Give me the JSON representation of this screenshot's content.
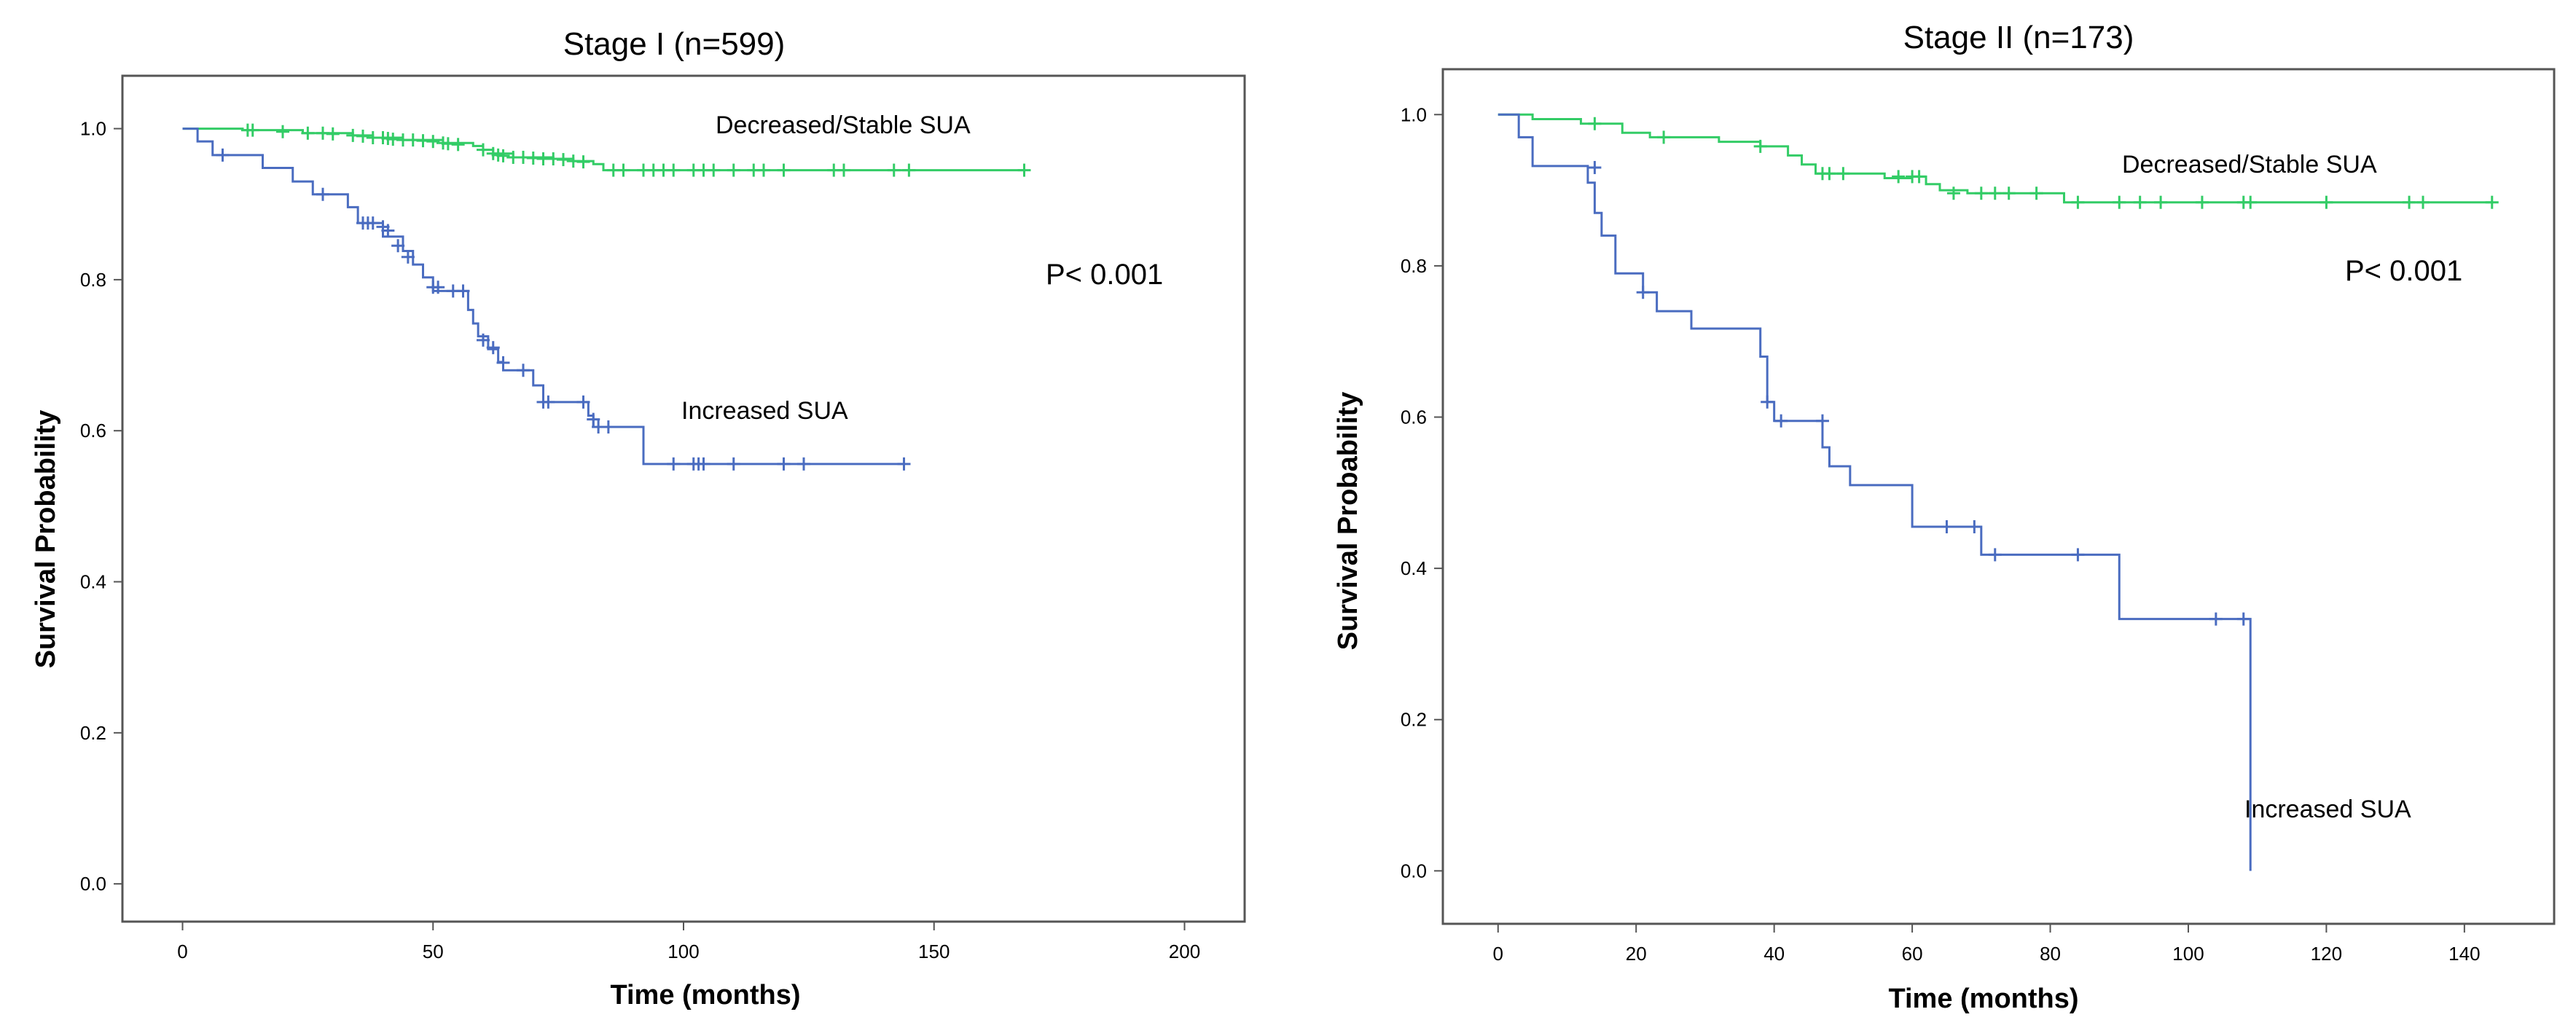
{
  "chart_data": [
    {
      "type": "line",
      "title": "Stage I (n=599)",
      "xlabel": "Time (months)",
      "ylabel": "Survival Probability",
      "xlim": [
        -12,
        212
      ],
      "ylim": [
        -0.05,
        1.07
      ],
      "x_ticks": [
        0,
        50,
        100,
        150,
        200
      ],
      "x_tick_labels": [
        "0",
        "50",
        "100",
        "150",
        "200"
      ],
      "y_ticks": [
        0.0,
        0.2,
        0.4,
        0.6,
        0.8,
        1.0
      ],
      "y_tick_labels": [
        "0.0",
        "0.2",
        "0.4",
        "0.6",
        "0.8",
        "1.0"
      ],
      "grid": false,
      "annotation": "P< 0.001",
      "series": [
        {
          "name": "Decreased/Stable SUA",
          "color": "#33cc66",
          "steps": [
            [
              0,
              1.0
            ],
            [
              12,
              0.998
            ],
            [
              24,
              0.994
            ],
            [
              34,
              0.991
            ],
            [
              38,
              0.988
            ],
            [
              44,
              0.985
            ],
            [
              52,
              0.981
            ],
            [
              58,
              0.977
            ],
            [
              60,
              0.972
            ],
            [
              62,
              0.967
            ],
            [
              66,
              0.962
            ],
            [
              74,
              0.96
            ],
            [
              78,
              0.957
            ],
            [
              82,
              0.953
            ],
            [
              84,
              0.945
            ],
            [
              168,
              0.945
            ]
          ],
          "censors": [
            [
              13,
              0.998
            ],
            [
              14,
              0.998
            ],
            [
              20,
              0.996
            ],
            [
              25,
              0.994
            ],
            [
              28,
              0.994
            ],
            [
              30,
              0.993
            ],
            [
              34,
              0.991
            ],
            [
              36,
              0.99
            ],
            [
              38,
              0.988
            ],
            [
              40,
              0.988
            ],
            [
              41,
              0.987
            ],
            [
              42,
              0.986
            ],
            [
              44,
              0.985
            ],
            [
              46,
              0.985
            ],
            [
              48,
              0.984
            ],
            [
              50,
              0.983
            ],
            [
              52,
              0.981
            ],
            [
              53,
              0.98
            ],
            [
              55,
              0.979
            ],
            [
              60,
              0.972
            ],
            [
              62,
              0.967
            ],
            [
              63,
              0.965
            ],
            [
              64,
              0.964
            ],
            [
              66,
              0.962
            ],
            [
              68,
              0.962
            ],
            [
              70,
              0.961
            ],
            [
              72,
              0.96
            ],
            [
              74,
              0.96
            ],
            [
              76,
              0.959
            ],
            [
              78,
              0.957
            ],
            [
              80,
              0.956
            ],
            [
              86,
              0.945
            ],
            [
              88,
              0.945
            ],
            [
              92,
              0.945
            ],
            [
              94,
              0.945
            ],
            [
              96,
              0.945
            ],
            [
              98,
              0.945
            ],
            [
              102,
              0.945
            ],
            [
              104,
              0.945
            ],
            [
              106,
              0.945
            ],
            [
              110,
              0.945
            ],
            [
              114,
              0.945
            ],
            [
              116,
              0.945
            ],
            [
              120,
              0.945
            ],
            [
              130,
              0.945
            ],
            [
              132,
              0.945
            ],
            [
              142,
              0.945
            ],
            [
              145,
              0.945
            ],
            [
              168,
              0.945
            ]
          ]
        },
        {
          "name": "Increased SUA",
          "color": "#4a6cc0",
          "steps": [
            [
              0,
              1.0
            ],
            [
              3,
              0.983
            ],
            [
              6,
              0.965
            ],
            [
              16,
              0.948
            ],
            [
              22,
              0.93
            ],
            [
              26,
              0.913
            ],
            [
              33,
              0.896
            ],
            [
              35,
              0.875
            ],
            [
              40,
              0.857
            ],
            [
              44,
              0.838
            ],
            [
              46,
              0.82
            ],
            [
              48,
              0.803
            ],
            [
              50,
              0.785
            ],
            [
              57,
              0.76
            ],
            [
              58,
              0.742
            ],
            [
              59,
              0.725
            ],
            [
              61,
              0.708
            ],
            [
              63,
              0.691
            ],
            [
              64,
              0.68
            ],
            [
              70,
              0.66
            ],
            [
              72,
              0.638
            ],
            [
              81,
              0.62
            ],
            [
              82,
              0.605
            ],
            [
              92,
              0.556
            ],
            [
              144,
              0.556
            ]
          ],
          "censors": [
            [
              8,
              0.965
            ],
            [
              28,
              0.913
            ],
            [
              36,
              0.875
            ],
            [
              37,
              0.875
            ],
            [
              38,
              0.875
            ],
            [
              40,
              0.87
            ],
            [
              41,
              0.865
            ],
            [
              43,
              0.845
            ],
            [
              45,
              0.83
            ],
            [
              50,
              0.79
            ],
            [
              51,
              0.79
            ],
            [
              54,
              0.785
            ],
            [
              56,
              0.785
            ],
            [
              60,
              0.72
            ],
            [
              62,
              0.71
            ],
            [
              64,
              0.69
            ],
            [
              68,
              0.68
            ],
            [
              72,
              0.638
            ],
            [
              73,
              0.638
            ],
            [
              80,
              0.638
            ],
            [
              82,
              0.615
            ],
            [
              83,
              0.605
            ],
            [
              85,
              0.605
            ],
            [
              98,
              0.556
            ],
            [
              102,
              0.556
            ],
            [
              103,
              0.556
            ],
            [
              104,
              0.556
            ],
            [
              110,
              0.556
            ],
            [
              120,
              0.556
            ],
            [
              124,
              0.556
            ],
            [
              144,
              0.556
            ]
          ]
        }
      ]
    },
    {
      "type": "line",
      "title": "Stage II (n=173)",
      "xlabel": "Time (months)",
      "ylabel": "Survival Probability",
      "xlim": [
        -8,
        153
      ],
      "ylim": [
        -0.07,
        1.06
      ],
      "x_ticks": [
        0,
        20,
        40,
        60,
        80,
        100,
        120,
        140
      ],
      "x_tick_labels": [
        "0",
        "20",
        "40",
        "60",
        "80",
        "100",
        "120",
        "140"
      ],
      "y_ticks": [
        0.0,
        0.2,
        0.4,
        0.6,
        0.8,
        1.0
      ],
      "y_tick_labels": [
        "0.0",
        "0.2",
        "0.4",
        "0.6",
        "0.8",
        "1.0"
      ],
      "grid": false,
      "annotation": "P< 0.001",
      "series": [
        {
          "name": "Decreased/Stable SUA",
          "color": "#33cc66",
          "steps": [
            [
              0,
              1.0
            ],
            [
              5,
              0.994
            ],
            [
              12,
              0.988
            ],
            [
              18,
              0.976
            ],
            [
              22,
              0.97
            ],
            [
              32,
              0.964
            ],
            [
              38,
              0.958
            ],
            [
              42,
              0.946
            ],
            [
              44,
              0.934
            ],
            [
              46,
              0.922
            ],
            [
              56,
              0.916
            ],
            [
              60,
              0.918
            ],
            [
              62,
              0.908
            ],
            [
              64,
              0.9
            ],
            [
              68,
              0.896
            ],
            [
              82,
              0.884
            ],
            [
              144,
              0.884
            ]
          ],
          "censors": [
            [
              14,
              0.988
            ],
            [
              24,
              0.97
            ],
            [
              38,
              0.958
            ],
            [
              47,
              0.922
            ],
            [
              48,
              0.922
            ],
            [
              50,
              0.922
            ],
            [
              58,
              0.918
            ],
            [
              60,
              0.918
            ],
            [
              61,
              0.918
            ],
            [
              66,
              0.896
            ],
            [
              70,
              0.896
            ],
            [
              72,
              0.896
            ],
            [
              74,
              0.896
            ],
            [
              78,
              0.896
            ],
            [
              84,
              0.884
            ],
            [
              90,
              0.884
            ],
            [
              93,
              0.884
            ],
            [
              96,
              0.884
            ],
            [
              102,
              0.884
            ],
            [
              108,
              0.884
            ],
            [
              109,
              0.884
            ],
            [
              120,
              0.884
            ],
            [
              132,
              0.884
            ],
            [
              134,
              0.884
            ],
            [
              144,
              0.884
            ]
          ]
        },
        {
          "name": "Increased SUA",
          "color": "#4a6cc0",
          "steps": [
            [
              0,
              1.0
            ],
            [
              3,
              0.97
            ],
            [
              5,
              0.932
            ],
            [
              13,
              0.91
            ],
            [
              14,
              0.87
            ],
            [
              15,
              0.84
            ],
            [
              17,
              0.79
            ],
            [
              21,
              0.765
            ],
            [
              23,
              0.74
            ],
            [
              28,
              0.717
            ],
            [
              38,
              0.68
            ],
            [
              39,
              0.62
            ],
            [
              40,
              0.595
            ],
            [
              47,
              0.56
            ],
            [
              48,
              0.535
            ],
            [
              51,
              0.51
            ],
            [
              60,
              0.455
            ],
            [
              70,
              0.418
            ],
            [
              90,
              0.333
            ],
            [
              109,
              0.0
            ]
          ],
          "censors": [
            [
              14,
              0.93
            ],
            [
              21,
              0.765
            ],
            [
              39,
              0.62
            ],
            [
              41,
              0.595
            ],
            [
              47,
              0.595
            ],
            [
              65,
              0.455
            ],
            [
              69,
              0.455
            ],
            [
              72,
              0.418
            ],
            [
              84,
              0.418
            ],
            [
              104,
              0.333
            ],
            [
              108,
              0.333
            ]
          ]
        }
      ]
    }
  ]
}
